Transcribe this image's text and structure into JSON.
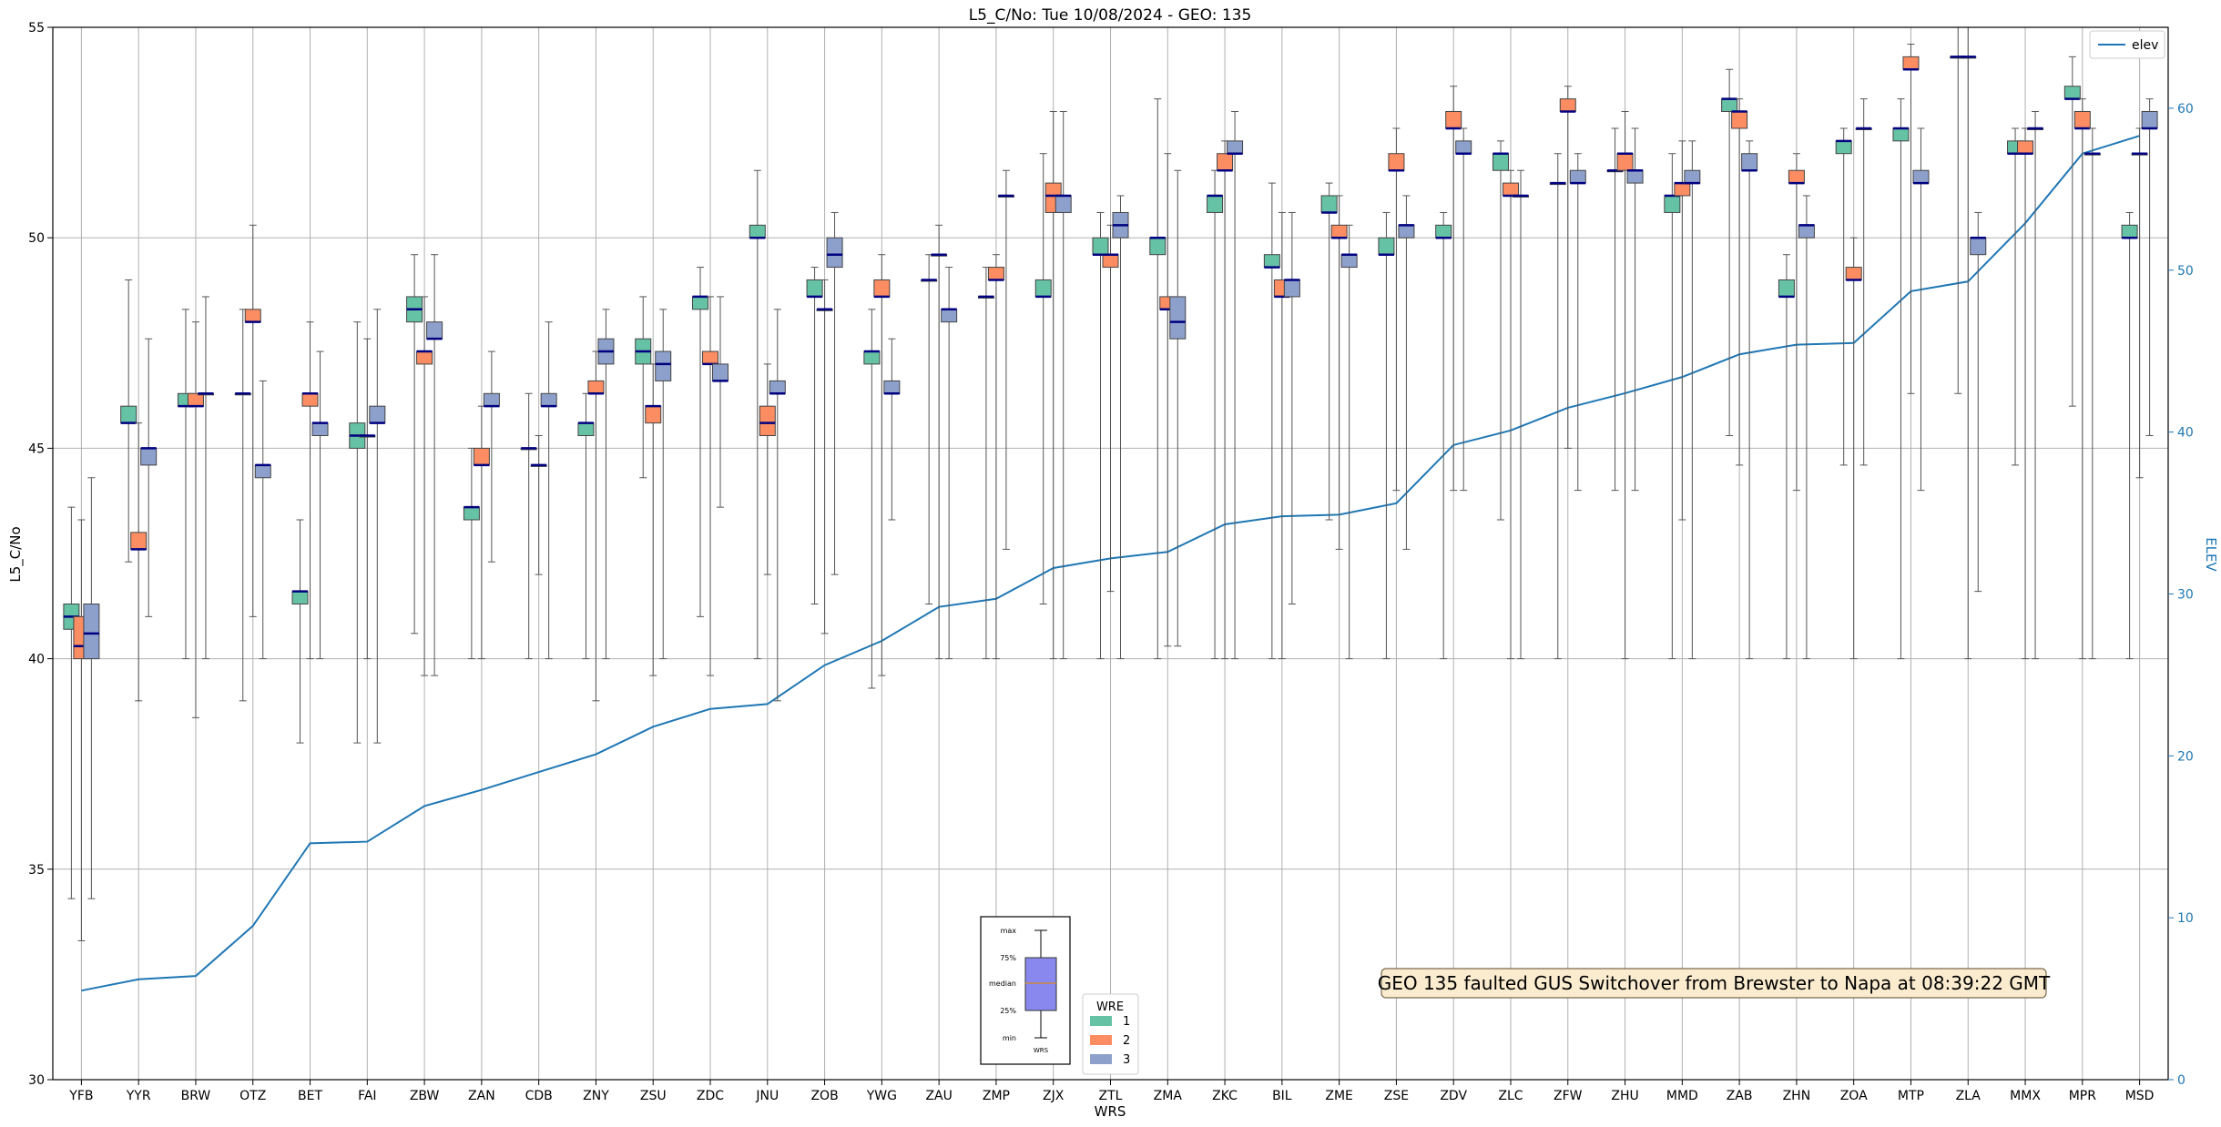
{
  "chart_data": {
    "type": "box",
    "title": "L5_C/No: Tue 10/08/2024 - GEO: 135",
    "xlabel": "WRS",
    "ylabel": "L5_C/No",
    "y2label": "ELEV",
    "ylim": [
      30,
      55
    ],
    "y2lim": [
      0,
      65
    ],
    "yticks": [
      "30",
      "35",
      "40",
      "45",
      "50",
      "55"
    ],
    "y2ticks": [
      "0",
      "10",
      "20",
      "30",
      "40",
      "50",
      "60"
    ],
    "grid": true,
    "categories": [
      "YFB",
      "YYR",
      "BRW",
      "OTZ",
      "BET",
      "FAI",
      "ZBW",
      "ZAN",
      "CDB",
      "ZNY",
      "ZSU",
      "ZDC",
      "JNU",
      "ZOB",
      "YWG",
      "ZAU",
      "ZMP",
      "ZJX",
      "ZTL",
      "ZMA",
      "ZKC",
      "BIL",
      "ZME",
      "ZSE",
      "ZDV",
      "ZLC",
      "ZFW",
      "ZHU",
      "MMD",
      "ZAB",
      "ZHN",
      "ZOA",
      "MTP",
      "ZLA",
      "MMX",
      "MPR",
      "MSD"
    ],
    "wre_colors": {
      "1": "#66c2a5",
      "2": "#fc8d62",
      "3": "#8da0cb"
    },
    "series_meta": [
      {
        "name": "1",
        "color": "#66c2a5"
      },
      {
        "name": "2",
        "color": "#fc8d62"
      },
      {
        "name": "3",
        "color": "#8da0cb"
      }
    ],
    "boxes": [
      [
        [
          34.3,
          40.7,
          41.0,
          41.3,
          43.6
        ],
        [
          33.3,
          40.0,
          40.3,
          41.0,
          43.3
        ],
        [
          34.3,
          40.0,
          40.6,
          41.3,
          44.3
        ]
      ],
      [
        [
          42.3,
          45.6,
          45.6,
          46.0,
          49.0
        ],
        [
          39.0,
          42.6,
          42.6,
          43.0,
          45.6
        ],
        [
          41.0,
          44.6,
          45.0,
          45.0,
          47.6
        ]
      ],
      [
        [
          40.0,
          46.0,
          46.0,
          46.3,
          48.3
        ],
        [
          38.6,
          46.0,
          46.0,
          46.3,
          48.0
        ],
        [
          40.0,
          46.3,
          46.3,
          46.3,
          48.6
        ]
      ],
      [
        [
          39.0,
          46.3,
          46.3,
          46.3,
          48.3
        ],
        [
          41.0,
          48.0,
          48.0,
          48.3,
          50.3
        ],
        [
          40.0,
          44.3,
          44.6,
          44.6,
          46.6
        ]
      ],
      [
        [
          38.0,
          41.3,
          41.6,
          41.6,
          43.3
        ],
        [
          40.0,
          46.0,
          46.3,
          46.3,
          48.0
        ],
        [
          40.0,
          45.3,
          45.6,
          45.6,
          47.3
        ]
      ],
      [
        [
          38.0,
          45.0,
          45.3,
          45.6,
          48.0
        ],
        [
          40.0,
          45.3,
          45.3,
          45.3,
          47.6
        ],
        [
          38.0,
          45.6,
          45.6,
          46.0,
          48.3
        ]
      ],
      [
        [
          40.6,
          48.0,
          48.3,
          48.6,
          49.6
        ],
        [
          39.6,
          47.0,
          47.3,
          47.3,
          48.6
        ],
        [
          39.6,
          47.6,
          47.6,
          48.0,
          49.6
        ]
      ],
      [
        [
          40.0,
          43.3,
          43.6,
          43.6,
          45.0
        ],
        [
          40.0,
          44.6,
          44.6,
          45.0,
          46.0
        ],
        [
          42.3,
          46.0,
          46.0,
          46.3,
          47.3
        ]
      ],
      [
        [
          40.0,
          45.0,
          45.0,
          45.0,
          46.3
        ],
        [
          42.0,
          44.6,
          44.6,
          44.6,
          45.3
        ],
        [
          40.0,
          46.0,
          46.0,
          46.3,
          48.0
        ]
      ],
      [
        [
          40.0,
          45.3,
          45.6,
          45.6,
          46.3
        ],
        [
          39.0,
          46.3,
          46.3,
          46.6,
          47.3
        ],
        [
          40.0,
          47.0,
          47.3,
          47.6,
          48.3
        ]
      ],
      [
        [
          44.3,
          47.0,
          47.3,
          47.6,
          48.6
        ],
        [
          39.6,
          45.6,
          46.0,
          46.0,
          47.0
        ],
        [
          40.0,
          46.6,
          47.0,
          47.3,
          48.3
        ]
      ],
      [
        [
          41.0,
          48.3,
          48.6,
          48.6,
          49.3
        ],
        [
          39.6,
          47.0,
          47.0,
          47.3,
          48.6
        ],
        [
          43.6,
          46.6,
          46.6,
          47.0,
          48.6
        ]
      ],
      [
        [
          40.0,
          50.0,
          50.0,
          50.3,
          51.6
        ],
        [
          42.0,
          45.3,
          45.6,
          46.0,
          47.0
        ],
        [
          39.0,
          46.3,
          46.3,
          46.6,
          48.3
        ]
      ],
      [
        [
          41.3,
          48.6,
          48.6,
          49.0,
          49.3
        ],
        [
          40.6,
          48.3,
          48.3,
          48.3,
          49.0
        ],
        [
          42.0,
          49.3,
          49.6,
          50.0,
          50.6
        ]
      ],
      [
        [
          39.3,
          47.0,
          47.3,
          47.3,
          48.3
        ],
        [
          39.6,
          48.6,
          48.6,
          49.0,
          49.6
        ],
        [
          43.3,
          46.3,
          46.3,
          46.6,
          47.6
        ]
      ],
      [
        [
          41.3,
          49.0,
          49.0,
          49.0,
          49.6
        ],
        [
          40.0,
          49.6,
          49.6,
          49.6,
          50.3
        ],
        [
          40.0,
          48.0,
          48.3,
          48.3,
          49.3
        ]
      ],
      [
        [
          40.0,
          48.6,
          48.6,
          48.6,
          49.3
        ],
        [
          40.0,
          49.0,
          49.0,
          49.3,
          49.6
        ],
        [
          42.6,
          51.0,
          51.0,
          51.0,
          51.6
        ]
      ],
      [
        [
          41.3,
          48.6,
          48.6,
          49.0,
          52.0
        ],
        [
          40.0,
          50.6,
          51.0,
          51.3,
          53.0
        ],
        [
          40.0,
          50.6,
          51.0,
          51.0,
          53.0
        ]
      ],
      [
        [
          40.0,
          49.6,
          49.6,
          50.0,
          50.6
        ],
        [
          41.6,
          49.3,
          49.6,
          49.6,
          50.3
        ],
        [
          40.0,
          50.0,
          50.3,
          50.6,
          51.0
        ]
      ],
      [
        [
          40.0,
          49.6,
          50.0,
          50.0,
          53.3
        ],
        [
          40.3,
          48.3,
          48.3,
          48.6,
          52.0
        ],
        [
          40.3,
          47.6,
          48.0,
          48.6,
          51.6
        ]
      ],
      [
        [
          40.0,
          50.6,
          51.0,
          51.0,
          51.6
        ],
        [
          40.0,
          51.6,
          51.6,
          52.0,
          52.3
        ],
        [
          40.0,
          52.0,
          52.0,
          52.3,
          53.0
        ]
      ],
      [
        [
          40.0,
          49.3,
          49.3,
          49.6,
          51.3
        ],
        [
          40.0,
          48.6,
          48.6,
          49.0,
          50.6
        ],
        [
          41.3,
          48.6,
          49.0,
          49.0,
          50.6
        ]
      ],
      [
        [
          43.3,
          50.6,
          50.6,
          51.0,
          51.3
        ],
        [
          42.6,
          50.0,
          50.0,
          50.3,
          51.0
        ],
        [
          40.0,
          49.3,
          49.6,
          49.6,
          50.3
        ]
      ],
      [
        [
          40.0,
          49.6,
          49.6,
          50.0,
          50.6
        ],
        [
          44.0,
          51.6,
          51.6,
          52.0,
          52.6
        ],
        [
          42.6,
          50.0,
          50.3,
          50.3,
          51.0
        ]
      ],
      [
        [
          40.0,
          50.0,
          50.0,
          50.3,
          50.6
        ],
        [
          44.0,
          52.6,
          52.6,
          53.0,
          53.6
        ],
        [
          44.0,
          52.0,
          52.0,
          52.3,
          52.6
        ]
      ],
      [
        [
          43.3,
          51.6,
          52.0,
          52.0,
          52.3
        ],
        [
          40.0,
          51.0,
          51.0,
          51.3,
          51.6
        ],
        [
          40.0,
          51.0,
          51.0,
          51.0,
          51.6
        ]
      ],
      [
        [
          40.0,
          51.3,
          51.3,
          51.3,
          52.0
        ],
        [
          45.0,
          53.0,
          53.0,
          53.3,
          53.6
        ],
        [
          44.0,
          51.3,
          51.3,
          51.6,
          52.0
        ]
      ],
      [
        [
          44.0,
          51.6,
          51.6,
          51.6,
          52.6
        ],
        [
          40.0,
          51.6,
          52.0,
          52.0,
          53.0
        ],
        [
          44.0,
          51.3,
          51.6,
          51.6,
          52.6
        ]
      ],
      [
        [
          40.0,
          50.6,
          51.0,
          51.0,
          52.0
        ],
        [
          43.3,
          51.0,
          51.3,
          51.3,
          52.3
        ],
        [
          40.0,
          51.3,
          51.3,
          51.6,
          52.3
        ]
      ],
      [
        [
          45.3,
          53.0,
          53.3,
          53.3,
          54.0
        ],
        [
          44.6,
          52.6,
          53.0,
          53.0,
          53.3
        ],
        [
          40.0,
          51.6,
          51.6,
          52.0,
          52.3
        ]
      ],
      [
        [
          40.0,
          48.6,
          48.6,
          49.0,
          49.6
        ],
        [
          44.0,
          51.3,
          51.3,
          51.6,
          52.0
        ],
        [
          40.0,
          50.0,
          50.3,
          50.3,
          51.0
        ]
      ],
      [
        [
          44.6,
          52.0,
          52.3,
          52.3,
          52.6
        ],
        [
          40.0,
          49.0,
          49.0,
          49.3,
          50.0
        ],
        [
          44.6,
          52.6,
          52.6,
          52.6,
          53.3
        ]
      ],
      [
        [
          40.0,
          52.3,
          52.6,
          52.6,
          53.3
        ],
        [
          46.3,
          54.0,
          54.0,
          54.3,
          54.6
        ],
        [
          44.0,
          51.3,
          51.3,
          51.6,
          52.6
        ]
      ],
      [
        [
          46.3,
          54.3,
          54.3,
          54.3,
          55.0
        ],
        [
          40.0,
          54.3,
          54.3,
          54.3,
          55.0
        ],
        [
          41.6,
          49.6,
          50.0,
          50.0,
          50.6
        ]
      ],
      [
        [
          44.6,
          52.0,
          52.0,
          52.3,
          52.6
        ],
        [
          40.0,
          52.0,
          52.0,
          52.3,
          52.6
        ],
        [
          40.0,
          52.6,
          52.6,
          52.6,
          53.0
        ]
      ],
      [
        [
          46.0,
          53.3,
          53.3,
          53.6,
          54.3
        ],
        [
          40.0,
          52.6,
          52.6,
          53.0,
          53.3
        ],
        [
          40.0,
          52.0,
          52.0,
          52.0,
          52.6
        ]
      ],
      [
        [
          40.0,
          50.0,
          50.0,
          50.3,
          50.6
        ],
        [
          44.3,
          52.0,
          52.0,
          52.0,
          52.6
        ],
        [
          45.3,
          52.6,
          52.6,
          53.0,
          53.3
        ]
      ]
    ],
    "elev_series": {
      "name": "elev",
      "color": "#1f77b4",
      "values": [
        5.5,
        6.2,
        6.4,
        9.5,
        14.6,
        14.7,
        16.9,
        17.9,
        19.0,
        20.1,
        21.8,
        22.9,
        23.2,
        25.6,
        27.1,
        29.2,
        29.7,
        31.6,
        32.2,
        32.6,
        34.3,
        34.8,
        34.9,
        35.6,
        39.2,
        40.1,
        41.5,
        42.4,
        43.4,
        44.8,
        45.4,
        45.5,
        48.7,
        49.3,
        52.9,
        57.2,
        58.3
      ]
    },
    "legend_elev": {
      "label": "elev",
      "placement": "top-right"
    },
    "legend_wre": {
      "title": "WRE",
      "items": [
        "1",
        "2",
        "3"
      ],
      "placement": "lower-center"
    },
    "legend_key": {
      "labels": [
        "max",
        "75%",
        "median",
        "25%",
        "min"
      ],
      "xlabel": "WRS"
    },
    "annotation": "GEO 135 faulted GUS Switchover from Brewster to Napa at 08:39:22 GMT"
  }
}
